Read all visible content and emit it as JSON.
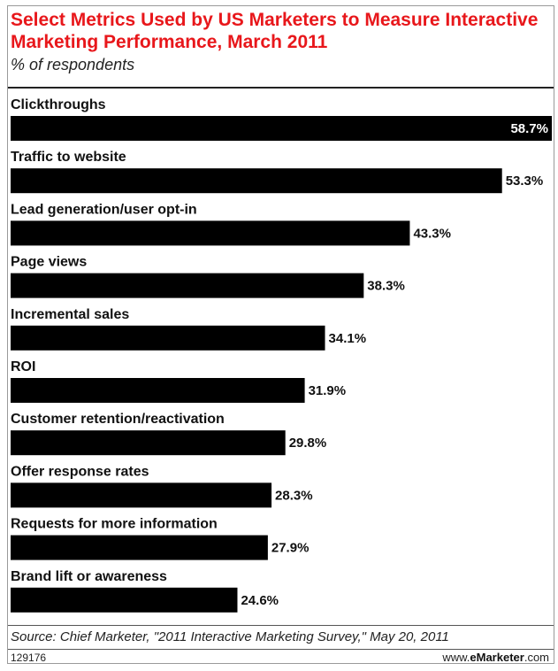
{
  "header": {
    "title": "Select Metrics Used by US Marketers to Measure Interactive Marketing Performance, March 2011",
    "subtitle": "% of respondents"
  },
  "footer": {
    "source": "Source: Chief Marketer, \"2011 Interactive Marketing Survey,\" May 20, 2011",
    "chart_id": "129176",
    "brand_prefix": "www.",
    "brand_name": "eMarketer",
    "brand_suffix": ".com"
  },
  "colors": {
    "title": "#e8171b",
    "bar": "#000000"
  },
  "chart_data": {
    "type": "bar",
    "orientation": "horizontal",
    "title": "Select Metrics Used by US Marketers to Measure Interactive Marketing Performance, March 2011",
    "subtitle": "% of respondents",
    "categories": [
      "Clickthroughs",
      "Traffic to website",
      "Lead generation/user opt-in",
      "Page views",
      "Incremental sales",
      "ROI",
      "Customer retention/reactivation",
      "Offer response rates",
      "Requests for more information",
      "Brand lift or awareness"
    ],
    "values": [
      58.7,
      53.3,
      43.3,
      38.3,
      34.1,
      31.9,
      29.8,
      28.3,
      27.9,
      24.6
    ],
    "value_labels": [
      "58.7%",
      "53.3%",
      "43.3%",
      "38.3%",
      "34.1%",
      "31.9%",
      "29.8%",
      "28.3%",
      "27.9%",
      "24.6%"
    ],
    "xlim": [
      0,
      58.7
    ],
    "grid": false,
    "legend": "none"
  }
}
